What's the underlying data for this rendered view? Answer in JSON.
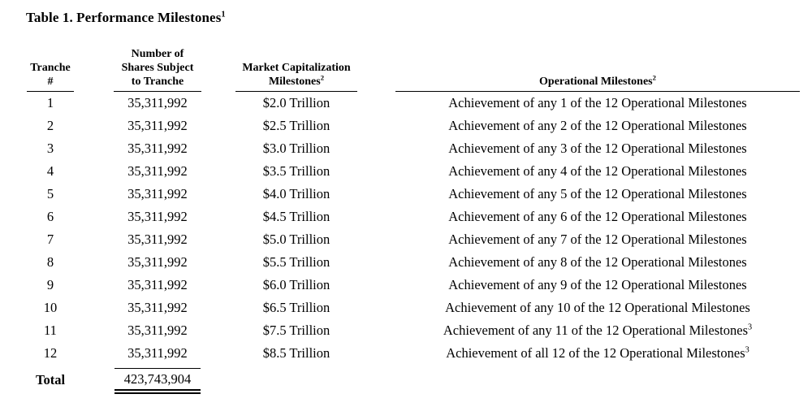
{
  "title": {
    "text": "Table 1. Performance Milestones",
    "sup": "1"
  },
  "table": {
    "headers": {
      "tranche": {
        "text": "Tranche\n#",
        "sup": ""
      },
      "shares": {
        "text": "Number of\nShares Subject\nto Tranche",
        "sup": ""
      },
      "market_cap": {
        "text": "Market Capitalization\nMilestones",
        "sup": "2"
      },
      "operational": {
        "text": "Operational Milestones",
        "sup": "2"
      }
    },
    "rows": [
      {
        "tranche": "1",
        "shares": "35,311,992",
        "market_cap": "$2.0 Trillion",
        "operational": "Achievement of any 1 of the 12 Operational Milestones",
        "sup": ""
      },
      {
        "tranche": "2",
        "shares": "35,311,992",
        "market_cap": "$2.5 Trillion",
        "operational": "Achievement of any 2 of the 12 Operational Milestones",
        "sup": ""
      },
      {
        "tranche": "3",
        "shares": "35,311,992",
        "market_cap": "$3.0 Trillion",
        "operational": "Achievement of any 3 of the 12 Operational Milestones",
        "sup": ""
      },
      {
        "tranche": "4",
        "shares": "35,311,992",
        "market_cap": "$3.5 Trillion",
        "operational": "Achievement of any 4 of the 12 Operational Milestones",
        "sup": ""
      },
      {
        "tranche": "5",
        "shares": "35,311,992",
        "market_cap": "$4.0 Trillion",
        "operational": "Achievement of any 5 of the 12 Operational Milestones",
        "sup": ""
      },
      {
        "tranche": "6",
        "shares": "35,311,992",
        "market_cap": "$4.5 Trillion",
        "operational": "Achievement of any 6 of the 12 Operational Milestones",
        "sup": ""
      },
      {
        "tranche": "7",
        "shares": "35,311,992",
        "market_cap": "$5.0 Trillion",
        "operational": "Achievement of any 7 of the 12 Operational Milestones",
        "sup": ""
      },
      {
        "tranche": "8",
        "shares": "35,311,992",
        "market_cap": "$5.5 Trillion",
        "operational": "Achievement of any 8 of the 12 Operational Milestones",
        "sup": ""
      },
      {
        "tranche": "9",
        "shares": "35,311,992",
        "market_cap": "$6.0 Trillion",
        "operational": "Achievement of any 9 of the 12 Operational Milestones",
        "sup": ""
      },
      {
        "tranche": "10",
        "shares": "35,311,992",
        "market_cap": "$6.5 Trillion",
        "operational": "Achievement of any 10 of the 12 Operational Milestones",
        "sup": ""
      },
      {
        "tranche": "11",
        "shares": "35,311,992",
        "market_cap": "$7.5 Trillion",
        "operational": "Achievement of any 11 of the 12 Operational Milestones",
        "sup": "3"
      },
      {
        "tranche": "12",
        "shares": "35,311,992",
        "market_cap": "$8.5 Trillion",
        "operational": "Achievement of all 12 of the 12 Operational Milestones",
        "sup": "3"
      }
    ],
    "total": {
      "label": "Total",
      "value": "423,743,904"
    }
  }
}
